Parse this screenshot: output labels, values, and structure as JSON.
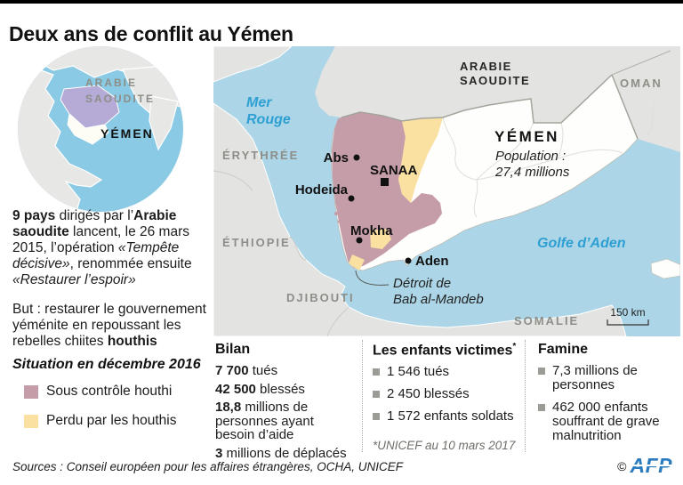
{
  "page": {
    "title": "Deux ans de conflit au Yémen",
    "sources": "Sources : Conseil européen pour les affaires étrangères, OCHA, UNICEF",
    "copyright_symbol": "©",
    "afp_label": "AFP"
  },
  "colors": {
    "houthi_pink": "#C59DA9",
    "lost_yellow": "#FAE1A1",
    "sea_blue": "#ACD6E8",
    "inset_sea_blue": "#8ACAE4",
    "land_gray": "#E3E3E1",
    "saudi_purple": "#B5ABD6",
    "country_label_gray": "#8E8E88",
    "sea_label_blue": "#2E9FD2",
    "afp_blue": "#2B7CBE"
  },
  "inset_map": {
    "saudi_line1": "ARABIE",
    "saudi_line2": "SAOUDITE",
    "yemen": "YÉMEN"
  },
  "intro": {
    "paragraph1_runs": [
      {
        "t": "9 pays",
        "b": true
      },
      {
        "t": " dirigés par l’"
      },
      {
        "t": "Arabie saoudite",
        "b": true
      },
      {
        "t": " lancent, le 26 mars 2015, l’opération "
      },
      {
        "t": "«Tempête décisive»",
        "i": true
      },
      {
        "t": ", renommée ensuite "
      },
      {
        "t": "«Restaurer l’espoir»",
        "i": true
      }
    ],
    "paragraph2_runs": [
      {
        "t": "But : restaurer le gouvernement yéménite en repoussant les rebelles chiites "
      },
      {
        "t": "houthis",
        "b": true
      }
    ]
  },
  "legend": {
    "title": "Situation en décembre 2016",
    "items": [
      {
        "label": "Sous contrôle houthi",
        "color": "#C59DA9"
      },
      {
        "label": "Perdu par les houthis",
        "color": "#FAE1A1"
      }
    ]
  },
  "map": {
    "countries": {
      "saudi_line1": "ARABIE",
      "saudi_line2": "SAOUDITE",
      "oman": "OMAN",
      "yemen": "YÉMEN",
      "eritrea": "ÉRYTHRÉE",
      "ethiopia": "ÉTHIOPIE",
      "djibouti": "DJIBOUTI",
      "somalia": "SOMALIE"
    },
    "yemen_population_line1": "Population :",
    "yemen_population_line2": "27,4 millions",
    "seas": {
      "red_sea_line1": "Mer",
      "red_sea_line2": "Rouge",
      "gulf_of_aden": "Golfe d’Aden"
    },
    "strait_line1": "Détroit de",
    "strait_line2": "Bab al-Mandeb",
    "scale_label": "150 km",
    "cities": {
      "abs": "Abs",
      "sanaa": "SANAA",
      "hodeida": "Hodeida",
      "mokha": "Mokha",
      "aden": "Aden"
    }
  },
  "stats": {
    "bilan": {
      "title": "Bilan",
      "items": [
        {
          "value": "7 700",
          "label": " tués"
        },
        {
          "value": "42 500",
          "label": " blessés"
        },
        {
          "value": "18,8",
          "label": " millions de personnes ayant besoin d’aide"
        },
        {
          "value": "3",
          "label": " millions de déplacés"
        }
      ]
    },
    "enfants": {
      "title": "Les enfants victimes",
      "asterisk": "*",
      "items": [
        "1 546 tués",
        "2 450 blessés",
        "1 572 enfants soldats"
      ],
      "note": "*UNICEF au 10 mars 2017"
    },
    "famine": {
      "title": "Famine",
      "items": [
        "7,3 millions de personnes",
        "462 000 enfants souffrant de grave malnutrition"
      ]
    }
  }
}
